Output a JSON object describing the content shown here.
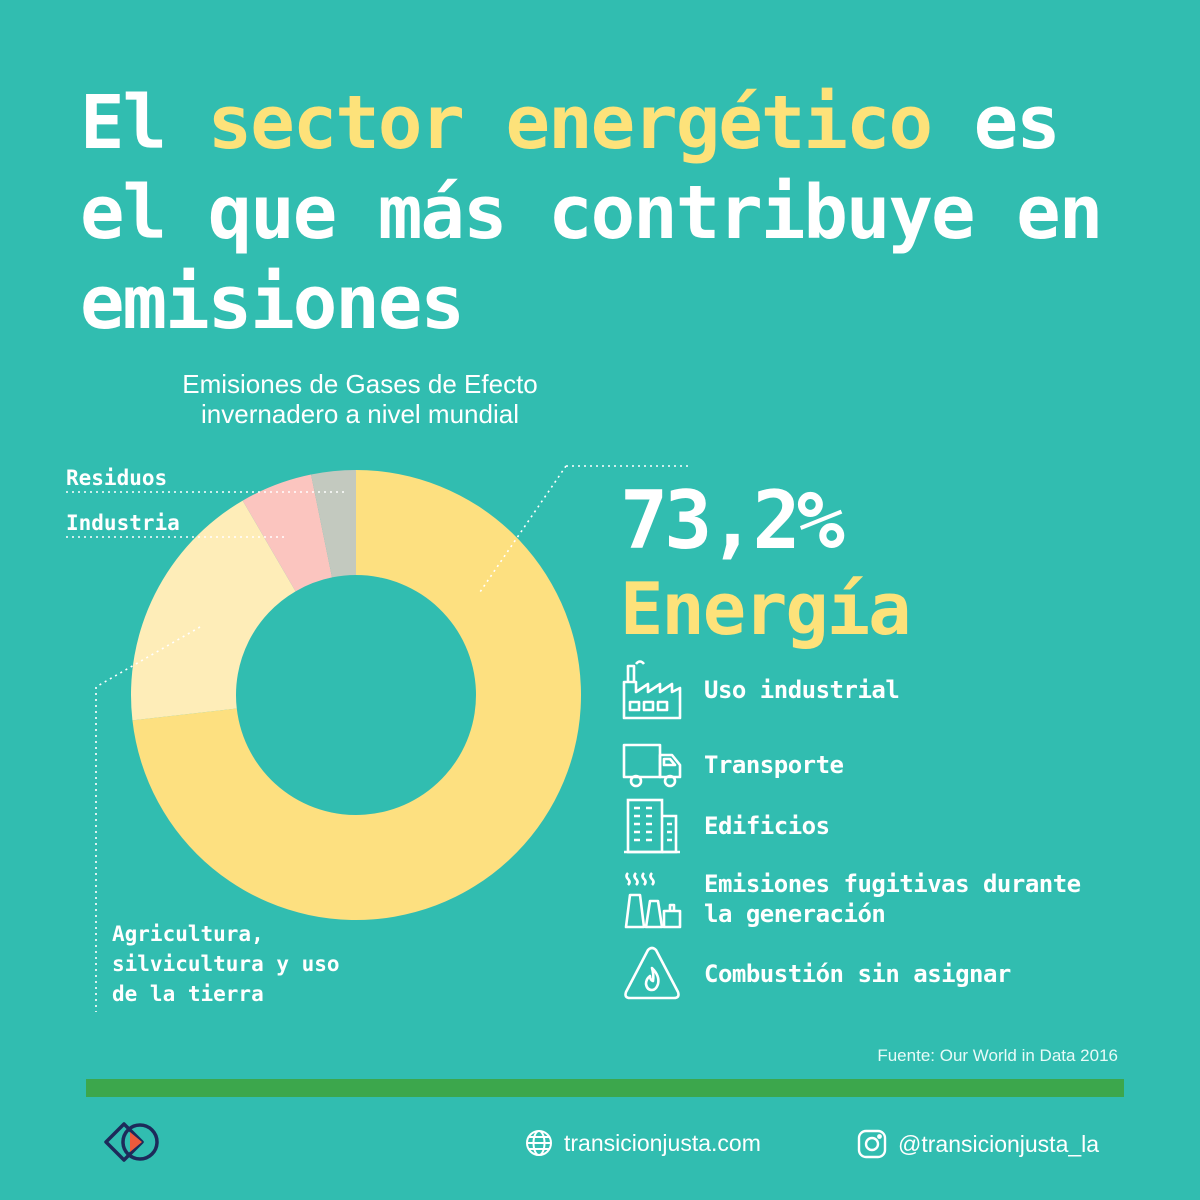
{
  "headline": {
    "part1": "El ",
    "highlight": "sector energético",
    "part2": " es el que más contribuye en emisiones"
  },
  "chart_data": {
    "type": "pie",
    "title": "Emisiones de Gases de Efecto invernadero a nivel mundial",
    "series": [
      {
        "name": "Energía",
        "value": 73.2,
        "color": "#fde080"
      },
      {
        "name": "Agricultura, silvicultura y uso de la tierra",
        "value": 18.4,
        "color": "#feedb8"
      },
      {
        "name": "Industria",
        "value": 5.2,
        "color": "#fbc5bf"
      },
      {
        "name": "Residuos",
        "value": 3.2,
        "color": "#c3c9bf"
      }
    ],
    "highlight_value": "73,2%",
    "highlight_name": "Energía"
  },
  "labels": {
    "residuos": "Residuos",
    "industria": "Industria",
    "agricultura_l1": "Agricultura,",
    "agricultura_l2": "silvicultura y uso",
    "agricultura_l3": "de la tierra"
  },
  "energy_subsectors": [
    {
      "icon": "factory-icon",
      "label_l1": "Uso industrial",
      "label_l2": ""
    },
    {
      "icon": "truck-icon",
      "label_l1": "Transporte",
      "label_l2": ""
    },
    {
      "icon": "building-icon",
      "label_l1": "Edificios",
      "label_l2": ""
    },
    {
      "icon": "power-plant-icon",
      "label_l1": "Emisiones fugitivas durante",
      "label_l2": "la generación"
    },
    {
      "icon": "flame-warning-icon",
      "label_l1": "Combustión sin asignar",
      "label_l2": ""
    }
  ],
  "source": "Fuente: Our World in Data 2016",
  "footer": {
    "website": "transicionjusta.com",
    "instagram": "@transicionjusta_la"
  },
  "colors": {
    "background": "#31bdb0",
    "accent": "#fde27a",
    "bar": "#3ca74c"
  }
}
